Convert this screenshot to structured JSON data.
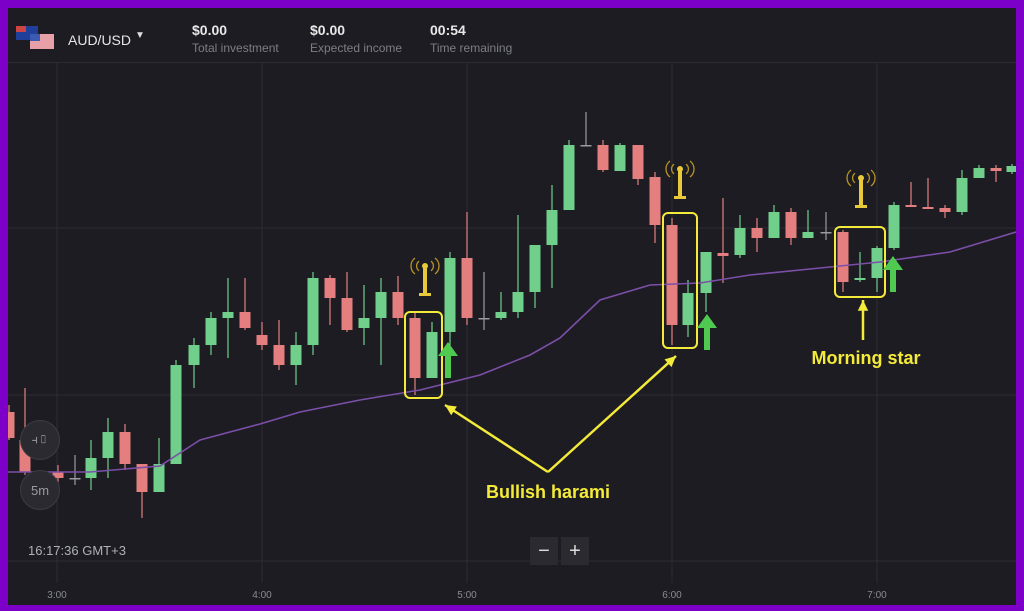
{
  "header": {
    "pair": "AUD/USD",
    "flag_icon": "aud-usd-flag-icon",
    "stats": [
      {
        "value": "$0.00",
        "label": "Total investment"
      },
      {
        "value": "$0.00",
        "label": "Expected income"
      },
      {
        "value": "00:54",
        "label": "Time remaining"
      }
    ]
  },
  "controls": {
    "chart_type_icon": "candlestick-icon",
    "timeframe": "5m",
    "zoom_out": "−",
    "zoom_in": "+"
  },
  "clock": "16:17:36 GMT+3",
  "time_axis": [
    "3:00",
    "4:00",
    "5:00",
    "6:00",
    "7:00"
  ],
  "annotations": {
    "bullish_harami": "Bullish harami",
    "morning_star": "Morning star"
  },
  "colors": {
    "frame": "#7d00c8",
    "background": "#1c1c22",
    "bull": "#6fcf8b",
    "bear": "#e57f7f",
    "moving_average": "#7b4fa8",
    "annotation": "#f4ea3a",
    "signal_arrow": "#4fc94f"
  }
}
